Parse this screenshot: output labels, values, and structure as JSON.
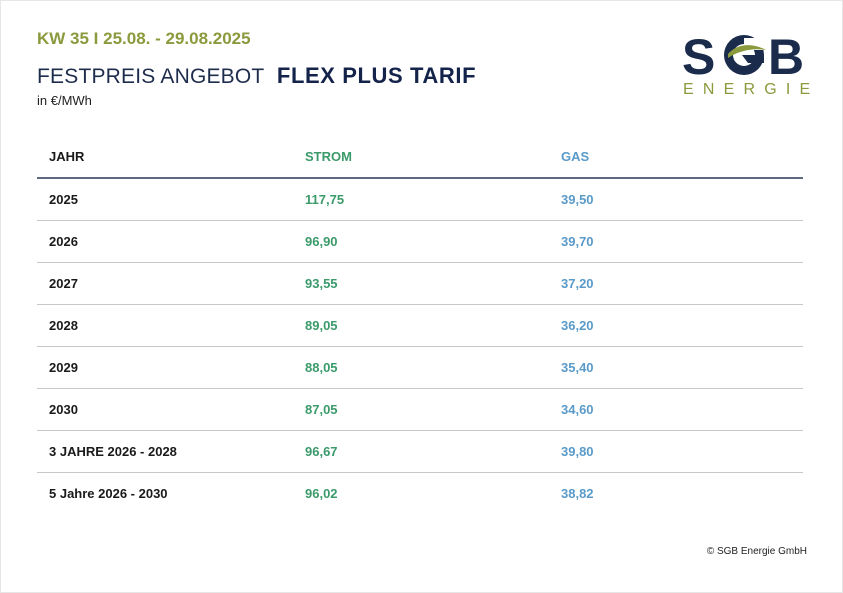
{
  "header": {
    "week": "KW 35 I 25.08. - 29.08.2025",
    "title_light": "FESTPREIS ANGEBOT",
    "title_bold": "FLEX PLUS TARIF",
    "unit": "in €/MWh"
  },
  "logo": {
    "letters": [
      "S",
      "B"
    ],
    "subtitle": "ENERGIE",
    "colors": {
      "navy": "#1a2b4c",
      "green": "#8a9a3c"
    }
  },
  "table": {
    "columns": {
      "year": "JAHR",
      "strom": "STROM",
      "gas": "GAS"
    },
    "rows": [
      {
        "year": "2025",
        "strom": "117,75",
        "gas": "39,50"
      },
      {
        "year": "2026",
        "strom": "96,90",
        "gas": "39,70"
      },
      {
        "year": "2027",
        "strom": "93,55",
        "gas": "37,20"
      },
      {
        "year": "2028",
        "strom": "89,05",
        "gas": "36,20"
      },
      {
        "year": "2029",
        "strom": "88,05",
        "gas": "35,40"
      },
      {
        "year": "2030",
        "strom": "87,05",
        "gas": "34,60"
      },
      {
        "year": "3 JAHRE 2026 - 2028",
        "strom": "96,67",
        "gas": "39,80"
      },
      {
        "year": "5 Jahre 2026 - 2030",
        "strom": "96,02",
        "gas": "38,82"
      }
    ]
  },
  "footer": {
    "copyright": "© SGB Energie GmbH"
  },
  "colors": {
    "strom": "#3a9a6a",
    "gas": "#5a9ac8",
    "accent_green": "#8a9a3c",
    "navy": "#14234a"
  }
}
